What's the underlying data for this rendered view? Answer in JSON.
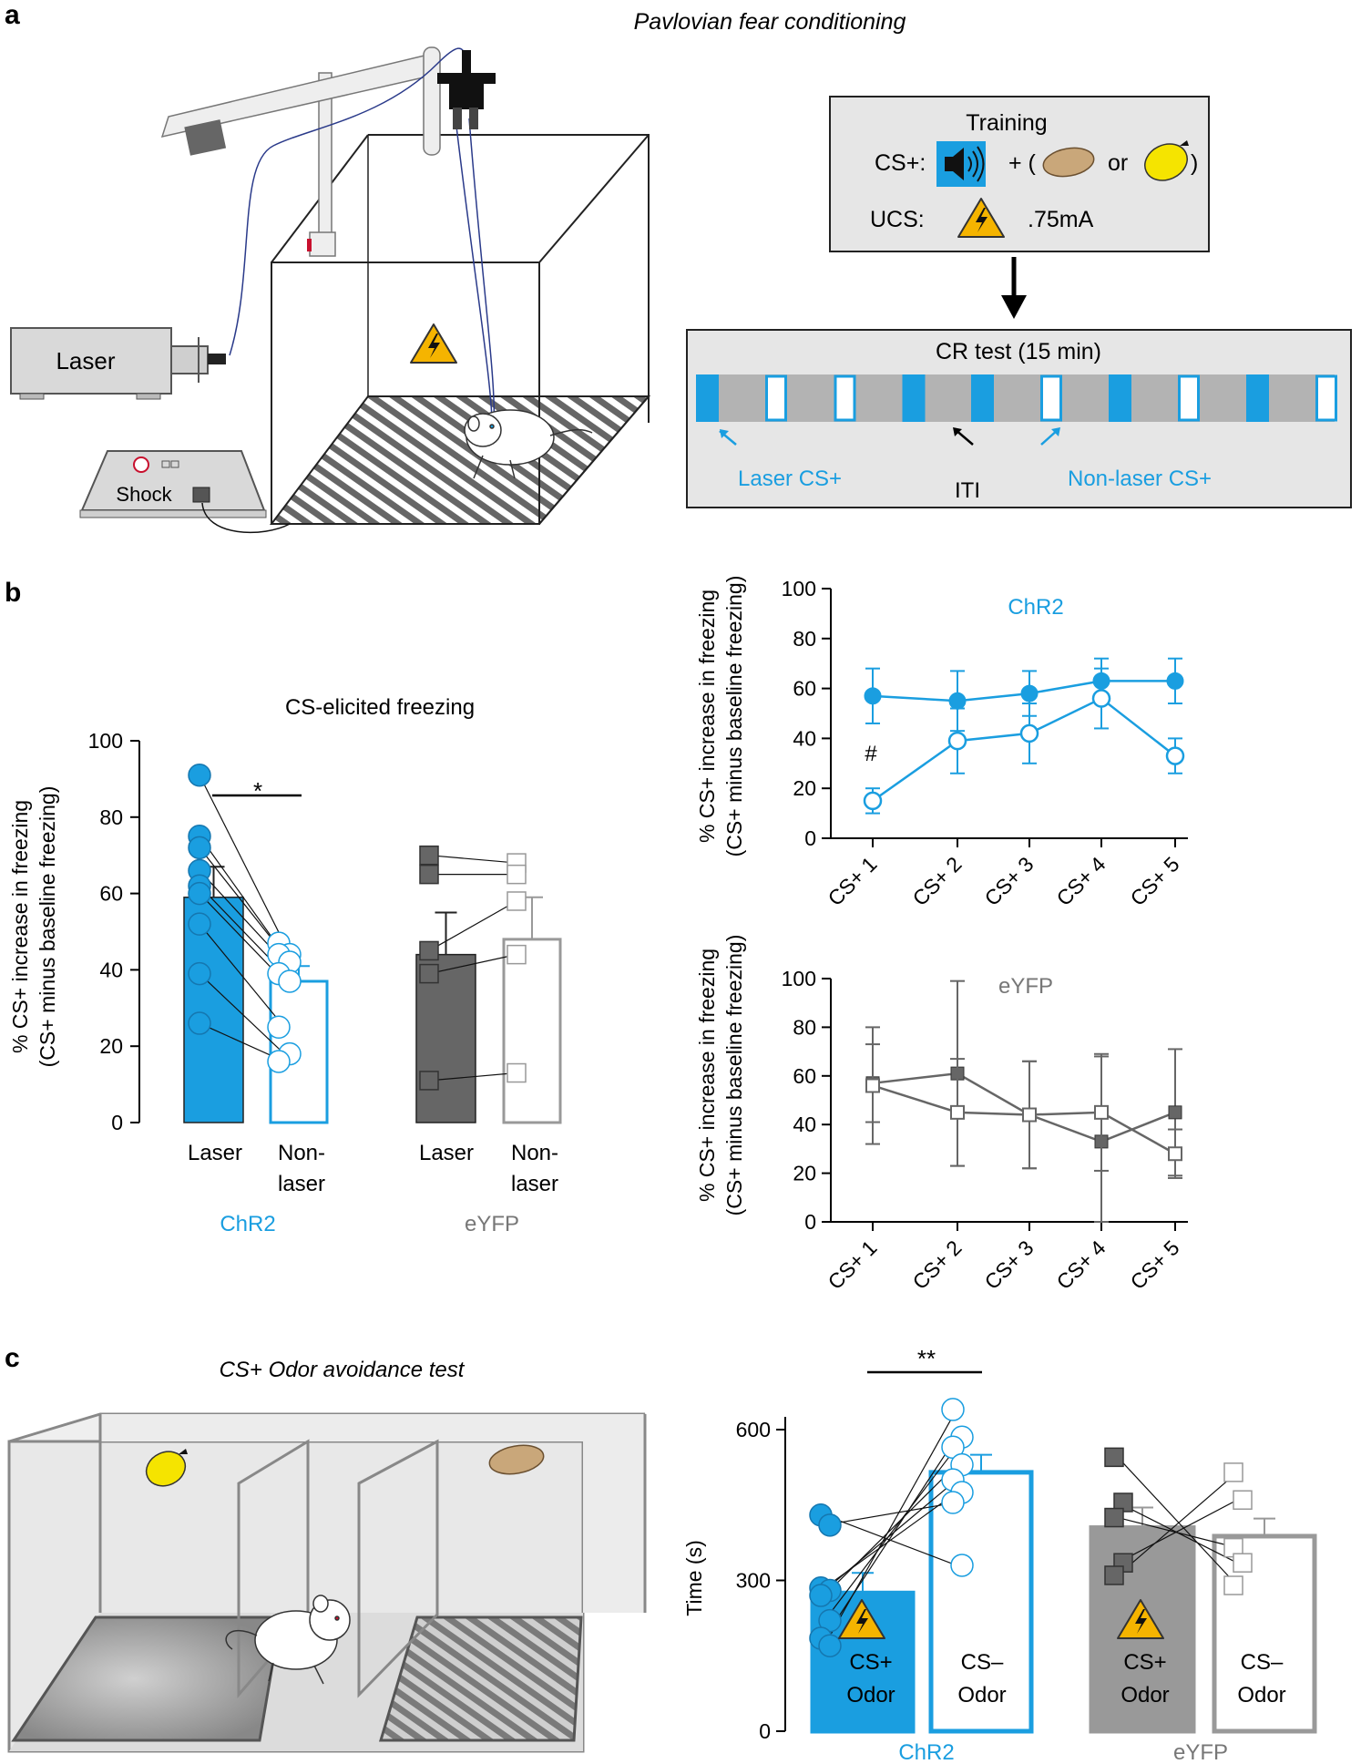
{
  "colors": {
    "blue": "#1a9ee0",
    "gray_dark": "#666666",
    "gray_mid": "#999999",
    "gray_light": "#bbbbbb",
    "warning": "#f5b400"
  },
  "panel_a": {
    "letter": "a",
    "title": "Pavlovian fear conditioning",
    "laser_label": "Laser",
    "shock_label": "Shock",
    "training": {
      "title": "Training",
      "cs_label": "CS+:",
      "plus": "+ (",
      "or": "or",
      "close": ")",
      "ucs_label": "UCS:",
      "current": ".75mA"
    },
    "cr_test": {
      "title": "CR test (15 min)",
      "laser_label": "Laser CS+",
      "iti_label": "ITI",
      "nonlaser_label": "Non-laser CS+",
      "sequence": [
        "L",
        "N",
        "N",
        "L",
        "L",
        "N",
        "L",
        "N",
        "L",
        "N"
      ]
    }
  },
  "panel_b": {
    "letter": "b",
    "bar_chart": {
      "title": "CS-elicited freezing",
      "ylabel_line1": "% CS+ increase in freezing",
      "ylabel_line2": "(CS+ minus baseline freezing)",
      "sig": "*",
      "ticks": [
        "0",
        "20",
        "40",
        "60",
        "80",
        "100"
      ],
      "cat_laser": "Laser",
      "cat_non1": "Non-",
      "cat_non2": "laser",
      "group1": "ChR2",
      "group2": "eYFP"
    },
    "line_top": {
      "label": "ChR2",
      "hash": "#",
      "ylabel_line1": "% CS+ increase in freezing",
      "ylabel_line2": "(CS+ minus baseline freezing)",
      "ticks": [
        "0",
        "20",
        "40",
        "60",
        "80",
        "100"
      ]
    },
    "line_bottom": {
      "label": "eYFP",
      "ylabel_line1": "% CS+ increase in freezing",
      "ylabel_line2": "(CS+ minus baseline freezing)",
      "ticks": [
        "0",
        "20",
        "40",
        "60",
        "80",
        "100"
      ]
    }
  },
  "panel_c": {
    "letter": "c",
    "title": "CS+ Odor avoidance test",
    "bar_chart": {
      "ylabel": "Time (s)",
      "sig": "**",
      "ticks": [
        "0",
        "300",
        "600"
      ],
      "cs_plus_1": "CS+",
      "cs_minus_1": "CS–",
      "odor": "Odor",
      "group1": "ChR2",
      "group2": "eYFP"
    }
  },
  "chart_data": [
    {
      "type": "bar",
      "title": "CS-elicited freezing",
      "ylabel": "% CS+ increase in freezing (CS+ minus baseline freezing)",
      "ylim": [
        0,
        100
      ],
      "categories": [
        "ChR2 Laser",
        "ChR2 Non-laser",
        "eYFP Laser",
        "eYFP Non-laser"
      ],
      "values": [
        59,
        37,
        44,
        48
      ],
      "errors": [
        8,
        4,
        11,
        11
      ],
      "points": {
        "chr2_laser": [
          91,
          75,
          72,
          66,
          62,
          60,
          52,
          39,
          26
        ],
        "chr2_nonlaser": [
          47,
          44,
          44,
          42,
          39,
          37,
          25,
          18,
          16
        ],
        "eyfp_laser": [
          70,
          65,
          45,
          39,
          11
        ],
        "eyfp_nonlaser": [
          68,
          65,
          58,
          44,
          13
        ]
      },
      "annotation": "*"
    },
    {
      "type": "line",
      "label": "ChR2",
      "ylabel": "% CS+ increase in freezing (CS+ minus baseline freezing)",
      "ylim": [
        0,
        100
      ],
      "x": [
        "CS+ 1",
        "CS+ 2",
        "CS+ 3",
        "CS+ 4",
        "CS+ 5"
      ],
      "series": [
        {
          "name": "Laser",
          "values": [
            57,
            55,
            58,
            63,
            63
          ],
          "errors": [
            11,
            12,
            9,
            9,
            9
          ],
          "marker": "filled-circle"
        },
        {
          "name": "Non-laser",
          "values": [
            15,
            39,
            42,
            56,
            33
          ],
          "errors": [
            5,
            13,
            12,
            12,
            7
          ],
          "marker": "open-circle"
        }
      ],
      "annotation": "#"
    },
    {
      "type": "line",
      "label": "eYFP",
      "ylabel": "% CS+ increase in freezing (CS+ minus baseline freezing)",
      "ylim": [
        0,
        100
      ],
      "x": [
        "CS+ 1",
        "CS+ 2",
        "CS+ 3",
        "CS+ 4",
        "CS+ 5"
      ],
      "series": [
        {
          "name": "Laser",
          "values": [
            57,
            61,
            44,
            33,
            45
          ],
          "errors": [
            16,
            38,
            22,
            35,
            26
          ],
          "marker": "filled-square"
        },
        {
          "name": "Non-laser",
          "values": [
            56,
            45,
            44,
            45,
            28
          ],
          "errors": [
            24,
            22,
            22,
            24,
            10
          ],
          "marker": "open-square"
        }
      ]
    },
    {
      "type": "bar",
      "ylabel": "Time (s)",
      "ylim": [
        0,
        620
      ],
      "categories": [
        "ChR2 CS+ Odor",
        "ChR2 CS– Odor",
        "eYFP CS+ Odor",
        "eYFP CS– Odor"
      ],
      "values": [
        275,
        515,
        405,
        388
      ],
      "errors": [
        40,
        35,
        40,
        35
      ],
      "points": {
        "chr2_csplus": [
          430,
          410,
          285,
          280,
          270,
          220,
          185,
          170
        ],
        "chr2_csminus": [
          640,
          585,
          565,
          530,
          500,
          475,
          455,
          330
        ],
        "eyfp_csplus": [
          545,
          455,
          425,
          335,
          310
        ],
        "eyfp_csminus": [
          515,
          460,
          365,
          335,
          290
        ]
      },
      "annotation": "**"
    }
  ]
}
